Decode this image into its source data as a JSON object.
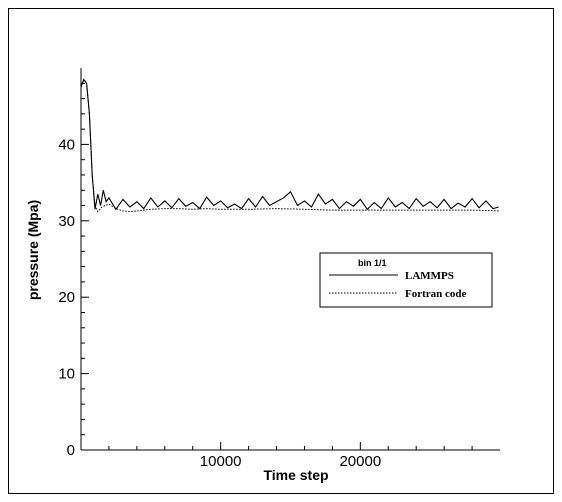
{
  "chart_data": {
    "type": "line",
    "xlabel": "Time step",
    "ylabel": "pressure (Mpa)",
    "xlim": [
      0,
      30000
    ],
    "ylim": [
      0,
      50
    ],
    "x_ticks": [
      10000,
      20000
    ],
    "y_ticks": [
      0,
      10,
      20,
      30,
      40
    ],
    "grid": false,
    "legend": {
      "title": "bin 1/1",
      "placement": "right",
      "entries": [
        "LAMMPS",
        "Fortran code"
      ]
    },
    "series": [
      {
        "name": "LAMMPS",
        "style": "solid",
        "x": [
          0,
          200,
          400,
          600,
          800,
          1000,
          1200,
          1400,
          1600,
          1800,
          2000,
          2500,
          3000,
          3500,
          4000,
          4500,
          5000,
          5500,
          6000,
          6500,
          7000,
          7500,
          8000,
          8500,
          9000,
          9500,
          10000,
          10500,
          11000,
          11500,
          12000,
          12500,
          13000,
          13500,
          14000,
          14500,
          15000,
          15500,
          16000,
          16500,
          17000,
          17500,
          18000,
          18500,
          19000,
          19500,
          20000,
          20500,
          21000,
          21500,
          22000,
          22500,
          23000,
          23500,
          24000,
          24500,
          25000,
          25500,
          26000,
          26500,
          27000,
          27500,
          28000,
          28500,
          29000,
          29500,
          29900
        ],
        "y": [
          47.5,
          48.5,
          48.0,
          44.0,
          36.0,
          31.5,
          33.5,
          32.0,
          34.0,
          32.5,
          33.0,
          31.5,
          32.8,
          31.8,
          32.5,
          31.6,
          33.0,
          31.8,
          32.6,
          31.7,
          32.9,
          31.9,
          32.4,
          31.6,
          33.1,
          32.0,
          32.6,
          31.7,
          32.2,
          31.6,
          32.9,
          31.8,
          33.2,
          32.0,
          32.5,
          33.0,
          33.8,
          32.0,
          32.6,
          31.8,
          33.5,
          32.2,
          32.8,
          31.6,
          32.5,
          31.9,
          32.8,
          31.5,
          32.4,
          31.6,
          33.0,
          31.8,
          32.4,
          31.6,
          32.9,
          31.9,
          32.5,
          31.7,
          32.8,
          31.6,
          32.3,
          31.8,
          32.9,
          31.7,
          32.6,
          31.6,
          31.8
        ]
      },
      {
        "name": "Fortran code",
        "style": "dotted",
        "x": [
          0,
          200,
          400,
          600,
          800,
          1000,
          1200,
          1500,
          2000,
          2500,
          3000,
          3500,
          4000,
          5000,
          6000,
          7000,
          8000,
          9000,
          10000,
          12000,
          14000,
          16000,
          18000,
          20000,
          22000,
          24000,
          26000,
          28000,
          29900
        ],
        "y": [
          47.5,
          48.5,
          48.0,
          44.0,
          36.0,
          32.0,
          31.2,
          31.8,
          32.2,
          31.6,
          31.3,
          31.2,
          31.3,
          31.5,
          31.6,
          31.6,
          31.5,
          31.6,
          31.5,
          31.5,
          31.6,
          31.5,
          31.4,
          31.4,
          31.4,
          31.4,
          31.4,
          31.4,
          31.3
        ]
      }
    ]
  }
}
